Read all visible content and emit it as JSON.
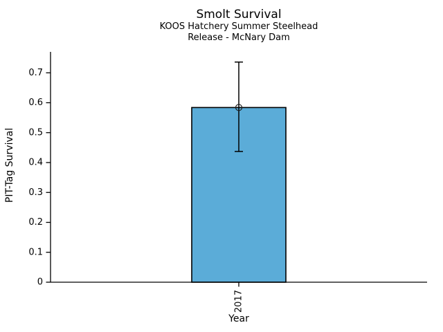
{
  "chart_data": {
    "type": "bar",
    "title": "Smolt Survival",
    "subtitle_line1": "KOOS Hatchery Summer Steelhead",
    "subtitle_line2": "Release - McNary Dam",
    "xlabel": "Year",
    "ylabel": "PIT-Tag Survival",
    "categories": [
      "2017"
    ],
    "values": [
      0.584
    ],
    "errors": [
      {
        "low": 0.437,
        "high": 0.736
      }
    ],
    "yticks": [
      0,
      0.1,
      0.2,
      0.3,
      0.4,
      0.5,
      0.6,
      0.7
    ],
    "ytick_labels": [
      "0",
      "0.1",
      "0.2",
      "0.3",
      "0.4",
      "0.5",
      "0.6",
      "0.7"
    ],
    "ylim": [
      0,
      0.77
    ],
    "grid": false,
    "legend": null,
    "marker": "open-circle",
    "bar_color": "#5BACD8",
    "bar_edge_color": "#000000",
    "axis_color": "#000000"
  }
}
